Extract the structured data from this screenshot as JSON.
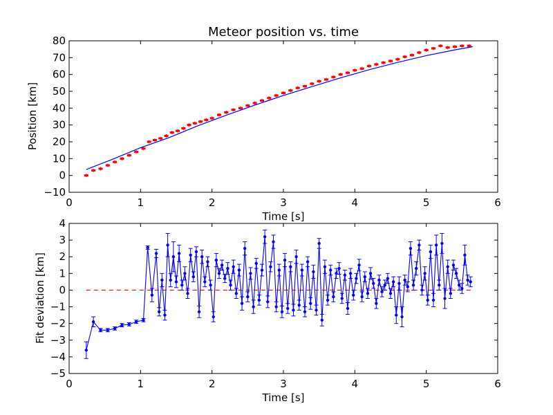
{
  "chart_data": [
    {
      "type": "scatter",
      "title": "Meteor position vs. time",
      "xlabel": "Time [s]",
      "ylabel": "Position [km]",
      "xlim": [
        0,
        6
      ],
      "ylim": [
        -10,
        80
      ],
      "xticks": [
        "0",
        "1",
        "2",
        "3",
        "4",
        "5",
        "6"
      ],
      "yticks": [
        "−10",
        "0",
        "10",
        "20",
        "30",
        "40",
        "50",
        "60",
        "70",
        "80"
      ],
      "grid": false,
      "colors": {
        "observed": "#ff0000",
        "fit": "#0000ff"
      },
      "series": [
        {
          "role": "observed",
          "x": [
            0.24,
            0.34,
            0.44,
            0.54,
            0.64,
            0.74,
            0.84,
            0.94,
            1.04,
            1.12,
            1.2,
            1.28,
            1.36,
            1.44,
            1.52,
            1.6,
            1.68,
            1.76,
            1.84,
            1.92,
            2.0,
            2.1,
            2.2,
            2.3,
            2.4,
            2.5,
            2.6,
            2.7,
            2.8,
            2.9,
            3.0,
            3.1,
            3.2,
            3.3,
            3.4,
            3.5,
            3.6,
            3.7,
            3.8,
            3.9,
            4.0,
            4.1,
            4.2,
            4.3,
            4.4,
            4.5,
            4.6,
            4.7,
            4.8,
            4.9,
            5.0,
            5.1,
            5.2,
            5.3,
            5.4,
            5.5,
            5.6
          ],
          "y": [
            0,
            3,
            4,
            6,
            8,
            10,
            12,
            14,
            16,
            20,
            21,
            22,
            23.5,
            25.5,
            26.5,
            28,
            30,
            31,
            32,
            33,
            34,
            36,
            37.5,
            39,
            40,
            41.5,
            43,
            44.5,
            46,
            47.5,
            49,
            50.5,
            52,
            53,
            54.5,
            56,
            57,
            58.5,
            60,
            61,
            62.5,
            63.5,
            65,
            66,
            67,
            68,
            69,
            70.5,
            71.5,
            73,
            74.5,
            75.5,
            77,
            76,
            76.5,
            77,
            77
          ]
        },
        {
          "role": "fit",
          "x": [
            0.24,
            0.6,
            1.0,
            1.4,
            1.8,
            2.2,
            2.6,
            3.0,
            3.4,
            3.8,
            4.2,
            4.6,
            5.0,
            5.4,
            5.65
          ],
          "y": [
            3.5,
            9.5,
            16.5,
            22.5,
            29.5,
            35.8,
            41.8,
            47.5,
            52.8,
            58.0,
            62.8,
            67.2,
            71.2,
            74.6,
            76.5
          ]
        }
      ]
    },
    {
      "type": "line",
      "xlabel": "Time [s]",
      "ylabel": "Fit deviation [km]",
      "xlim": [
        0,
        6
      ],
      "ylim": [
        -5,
        4
      ],
      "xticks": [
        "0",
        "1",
        "2",
        "3",
        "4",
        "5",
        "6"
      ],
      "yticks": [
        "−5",
        "−4",
        "−3",
        "−2",
        "−1",
        "0",
        "1",
        "2",
        "3",
        "4"
      ],
      "grid": false,
      "colors": {
        "deviation": "#0000ff",
        "zero": "#ff0000"
      },
      "reference_y": 0,
      "reference_x_range": [
        0.24,
        5.65
      ],
      "series": [
        {
          "role": "deviation",
          "x": [
            0.24,
            0.34,
            0.44,
            0.54,
            0.64,
            0.74,
            0.84,
            0.94,
            1.04,
            1.1,
            1.16,
            1.22,
            1.26,
            1.3,
            1.34,
            1.38,
            1.42,
            1.46,
            1.5,
            1.54,
            1.58,
            1.62,
            1.66,
            1.7,
            1.74,
            1.78,
            1.82,
            1.86,
            1.9,
            1.94,
            1.98,
            2.02,
            2.06,
            2.1,
            2.14,
            2.18,
            2.22,
            2.26,
            2.3,
            2.34,
            2.38,
            2.42,
            2.46,
            2.5,
            2.54,
            2.58,
            2.62,
            2.66,
            2.7,
            2.74,
            2.78,
            2.82,
            2.86,
            2.9,
            2.94,
            2.98,
            3.02,
            3.06,
            3.1,
            3.14,
            3.18,
            3.22,
            3.26,
            3.3,
            3.34,
            3.38,
            3.42,
            3.46,
            3.5,
            3.54,
            3.58,
            3.62,
            3.66,
            3.7,
            3.74,
            3.78,
            3.82,
            3.86,
            3.9,
            3.94,
            3.98,
            4.02,
            4.06,
            4.1,
            4.14,
            4.18,
            4.22,
            4.26,
            4.3,
            4.34,
            4.38,
            4.42,
            4.46,
            4.5,
            4.54,
            4.58,
            4.62,
            4.66,
            4.7,
            4.74,
            4.78,
            4.82,
            4.86,
            4.9,
            4.94,
            4.98,
            5.02,
            5.06,
            5.1,
            5.14,
            5.18,
            5.22,
            5.26,
            5.3,
            5.34,
            5.38,
            5.42,
            5.46,
            5.5,
            5.54,
            5.58,
            5.62
          ],
          "y": [
            -3.6,
            -1.9,
            -2.4,
            -2.4,
            -2.3,
            -2.1,
            -2.05,
            -1.9,
            -1.8,
            2.55,
            -0.3,
            2.2,
            -1.3,
            0.6,
            -1.5,
            2.7,
            0.6,
            2.0,
            0.5,
            2.2,
            0.3,
            1.0,
            -0.2,
            2.1,
            0.8,
            2.3,
            -1.3,
            2.0,
            0.5,
            1.7,
            0.3,
            -1.6,
            1.8,
            1.0,
            1.5,
            0.7,
            1.3,
            0.3,
            1.4,
            -0.2,
            1.2,
            -0.8,
            2.5,
            -0.4,
            1.0,
            -1.0,
            1.6,
            -0.6,
            1.2,
            3.2,
            -0.7,
            1.4,
            2.9,
            -1.0,
            1.2,
            -1.3,
            1.8,
            -1.1,
            1.4,
            -1.2,
            2.0,
            -0.9,
            1.2,
            -1.3,
            1.7,
            -0.8,
            1.1,
            -1.2,
            2.8,
            -1.8,
            1.4,
            -0.6,
            1.2,
            -0.4,
            1.0,
            1.3,
            -0.5,
            0.9,
            -1.1,
            1.0,
            -0.3,
            0.7,
            1.5,
            -0.4,
            0.8,
            -0.2,
            1.0,
            0.4,
            -0.8,
            0.6,
            -0.1,
            0.3,
            0.7,
            -0.2,
            0.5,
            -1.5,
            0.4,
            -1.6,
            0.6,
            0.2,
            2.5,
            0.3,
            1.3,
            2.7,
            0.0,
            1.0,
            -0.6,
            2.3,
            -0.6,
            2.7,
            0.3,
            2.8,
            -0.5,
            1.4,
            -0.2,
            1.5,
            1.0,
            0.3,
            0.1,
            2.1,
            0.6,
            0.5
          ],
          "err": [
            0.5,
            0.3,
            0.1,
            0.1,
            0.1,
            0.1,
            0.1,
            0.1,
            0.1,
            0.1,
            0.4,
            0.25,
            0.25,
            0.4,
            0.3,
            0.7,
            0.4,
            0.9,
            0.35,
            0.5,
            0.3,
            0.4,
            0.3,
            0.4,
            0.3,
            0.3,
            0.35,
            0.4,
            0.3,
            0.3,
            0.3,
            0.3,
            0.4,
            0.3,
            0.3,
            0.25,
            0.35,
            0.3,
            0.4,
            0.3,
            0.35,
            0.4,
            0.4,
            0.3,
            0.35,
            0.4,
            0.3,
            0.3,
            0.35,
            0.4,
            0.35,
            0.3,
            0.4,
            0.3,
            0.35,
            0.35,
            0.4,
            0.3,
            0.3,
            0.35,
            0.4,
            0.3,
            0.35,
            0.3,
            0.3,
            0.35,
            0.4,
            0.3,
            0.3,
            0.35,
            0.4,
            0.3,
            0.3,
            0.3,
            0.3,
            0.35,
            0.3,
            0.3,
            0.35,
            0.3,
            0.3,
            0.3,
            0.35,
            0.3,
            0.3,
            0.3,
            0.35,
            0.3,
            0.3,
            0.3,
            0.3,
            0.3,
            0.3,
            0.3,
            0.3,
            0.5,
            0.4,
            0.6,
            0.3,
            0.3,
            0.4,
            0.3,
            0.4,
            0.3,
            0.3,
            0.4,
            0.3,
            0.4,
            0.4,
            0.6,
            0.3,
            0.6,
            0.6,
            0.4,
            0.3,
            0.3,
            0.3,
            0.3,
            0.3,
            0.6,
            0.3,
            0.3
          ]
        }
      ]
    }
  ]
}
